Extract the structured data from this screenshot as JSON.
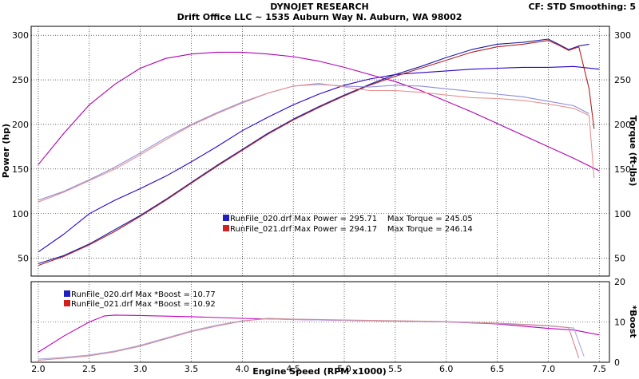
{
  "header": {
    "title": "DYNOJET RESEARCH",
    "subtitle": "Drift Office LLC ~ 1535 Auburn Way N. Auburn, WA 98002",
    "settings": "CF: STD  Smoothing: 5"
  },
  "colors": {
    "run_020_power": "#1a1aa8",
    "run_020_torque": "#8c8cd8",
    "run_020_boost": "#b0a8e0",
    "run_021_power": "#b42020",
    "run_021_torque": "#e89090",
    "run_021_boost": "#d08890",
    "line_020_power": "#2a00c8",
    "line_021_power": "#b000b0",
    "line_boost_main": "#c000c0",
    "legend_020": "#2020c0",
    "legend_021": "#d02020"
  },
  "chart_data": [
    {
      "type": "line",
      "title": "",
      "xlabel": "Engine Speed (RPM x1000)",
      "ylabel": "Power (hp)",
      "y2label": "Torque (ft-lbs)",
      "xlim": [
        1.93,
        7.6
      ],
      "ylim": [
        30,
        310
      ],
      "y2lim": [
        30,
        310
      ],
      "x_ticks": [
        "2.0",
        "2.5",
        "3.0",
        "3.5",
        "4.0",
        "4.5",
        "5.0",
        "5.5",
        "6.0",
        "6.5",
        "7.0",
        "7.5"
      ],
      "y_ticks": [
        "50",
        "100",
        "150",
        "200",
        "250",
        "300"
      ],
      "y2_ticks": [
        "50",
        "100",
        "150",
        "200",
        "250",
        "300"
      ],
      "grid": true,
      "legend": [
        "RunFile_020.drf Max Power = 295.71    Max Torque = 245.05",
        "RunFile_021.drf Max Power = 294.17    Max Torque = 246.14"
      ],
      "series": [
        {
          "name": "RunFile_020.drf",
          "color_key": "line_020_power",
          "x": [
            2.0,
            2.25,
            2.5,
            2.75,
            3.0,
            3.25,
            3.5,
            3.75,
            4.0,
            4.25,
            4.5,
            4.75,
            5.0,
            5.25,
            5.5,
            5.75,
            6.0,
            6.25,
            6.5,
            6.75,
            7.0,
            7.25,
            7.5
          ],
          "y": [
            57,
            77,
            100,
            115,
            128,
            142,
            158,
            175,
            193,
            208,
            222,
            234,
            244,
            251,
            256,
            258,
            260,
            262,
            263,
            264,
            264,
            265,
            262
          ]
        },
        {
          "name": "RunFile_021.drf",
          "color_key": "line_021_power",
          "x": [
            2.0,
            2.25,
            2.5,
            2.75,
            3.0,
            3.25,
            3.5,
            3.75,
            4.0,
            4.25,
            4.5,
            4.75,
            5.0,
            5.25,
            5.5,
            5.75,
            6.0,
            6.25,
            6.5,
            6.75,
            7.0,
            7.25,
            7.5
          ],
          "y": [
            155,
            190,
            222,
            245,
            263,
            274,
            279,
            281,
            281,
            279,
            276,
            271,
            264,
            256,
            248,
            238,
            226,
            214,
            201,
            188,
            175,
            162,
            148
          ]
        },
        {
          "name": "RunFile_020.drf",
          "color_key": "run_020_power",
          "x": [
            2.0,
            2.25,
            2.5,
            2.75,
            3.0,
            3.25,
            3.5,
            3.75,
            4.0,
            4.25,
            4.5,
            4.75,
            5.0,
            5.25,
            5.5,
            5.75,
            6.0,
            6.25,
            6.5,
            6.75,
            7.0,
            7.1,
            7.2,
            7.3,
            7.4
          ],
          "y": [
            44,
            53,
            66,
            82,
            98,
            116,
            135,
            154,
            172,
            190,
            206,
            220,
            233,
            245,
            256,
            265,
            275,
            284,
            290,
            292,
            295.7,
            290,
            284,
            288,
            290
          ]
        },
        {
          "name": "RunFile_021.drf",
          "color_key": "run_021_power",
          "x": [
            2.0,
            2.25,
            2.5,
            2.75,
            3.0,
            3.25,
            3.5,
            3.75,
            4.0,
            4.25,
            4.5,
            4.75,
            5.0,
            5.25,
            5.5,
            5.75,
            6.0,
            6.25,
            6.5,
            6.75,
            7.0,
            7.1,
            7.2,
            7.3,
            7.4,
            7.45
          ],
          "y": [
            42,
            52,
            65,
            80,
            97,
            115,
            134,
            153,
            171,
            189,
            205,
            219,
            232,
            244,
            254,
            263,
            272,
            281,
            287,
            290,
            294.2,
            289,
            283,
            287,
            240,
            195
          ]
        },
        {
          "name": "RunFile_020.drf",
          "color_key": "run_020_torque",
          "x": [
            2.0,
            2.25,
            2.5,
            2.75,
            3.0,
            3.25,
            3.5,
            3.75,
            4.0,
            4.25,
            4.5,
            4.75,
            5.0,
            5.25,
            5.5,
            5.75,
            6.0,
            6.25,
            6.5,
            6.75,
            7.0,
            7.25,
            7.4
          ],
          "y": [
            115,
            125,
            138,
            152,
            168,
            185,
            200,
            213,
            225,
            235,
            243,
            245,
            243,
            242,
            244,
            243,
            240,
            237,
            234,
            231,
            226,
            221,
            212
          ]
        },
        {
          "name": "RunFile_021.drf",
          "color_key": "run_021_torque",
          "x": [
            2.0,
            2.25,
            2.5,
            2.75,
            3.0,
            3.25,
            3.5,
            3.75,
            4.0,
            4.25,
            4.5,
            4.75,
            5.0,
            5.25,
            5.5,
            5.75,
            6.0,
            6.25,
            6.5,
            6.75,
            7.0,
            7.25,
            7.4,
            7.45
          ],
          "y": [
            113,
            124,
            137,
            150,
            166,
            183,
            199,
            212,
            224,
            235,
            243,
            246,
            242,
            238,
            238,
            236,
            233,
            230,
            229,
            227,
            223,
            218,
            210,
            140
          ]
        }
      ]
    },
    {
      "type": "line",
      "title": "",
      "xlabel": "Engine Speed (RPM x1000)",
      "ylabel": "",
      "y2label": "*Boost",
      "xlim": [
        1.93,
        7.6
      ],
      "ylim": [
        0,
        20
      ],
      "y2lim": [
        0,
        20
      ],
      "y2_ticks": [
        "0",
        "10",
        "20"
      ],
      "grid": true,
      "legend": [
        "RunFile_020.drf Max *Boost = 10.77",
        "RunFile_021.drf Max *Boost = 10.92"
      ],
      "series": [
        {
          "name": "RunFile_021.drf",
          "color_key": "line_boost_main",
          "x": [
            2.0,
            2.25,
            2.5,
            2.65,
            2.75,
            3.0,
            3.5,
            4.0,
            4.5,
            5.0,
            5.5,
            6.0,
            6.5,
            7.0,
            7.25,
            7.5
          ],
          "y": [
            2.5,
            6.5,
            10,
            11.5,
            11.7,
            11.6,
            11.3,
            10.9,
            10.6,
            10.4,
            10.2,
            10,
            9.5,
            8.4,
            8,
            6.8
          ]
        },
        {
          "name": "RunFile_020.drf",
          "color_key": "run_020_boost",
          "x": [
            2.0,
            2.25,
            2.5,
            2.75,
            3.0,
            3.25,
            3.5,
            3.75,
            4.0,
            4.25,
            4.5,
            5.0,
            5.5,
            6.0,
            6.5,
            7.0,
            7.25,
            7.35
          ],
          "y": [
            0.8,
            1.2,
            1.8,
            2.8,
            4.2,
            6,
            7.8,
            9.2,
            10.3,
            10.77,
            10.6,
            10.4,
            10.2,
            10,
            9.6,
            9,
            8.5,
            1.5
          ]
        },
        {
          "name": "RunFile_021.drf",
          "color_key": "run_021_boost",
          "x": [
            2.0,
            2.25,
            2.5,
            2.75,
            3.0,
            3.25,
            3.5,
            3.75,
            4.0,
            4.25,
            4.5,
            5.0,
            5.5,
            6.0,
            6.5,
            7.0,
            7.2,
            7.3
          ],
          "y": [
            0.5,
            1,
            1.6,
            2.6,
            4,
            5.8,
            7.6,
            9,
            10.2,
            10.92,
            10.7,
            10.5,
            10.3,
            10.1,
            9.7,
            9.1,
            8.6,
            1
          ]
        }
      ]
    }
  ]
}
